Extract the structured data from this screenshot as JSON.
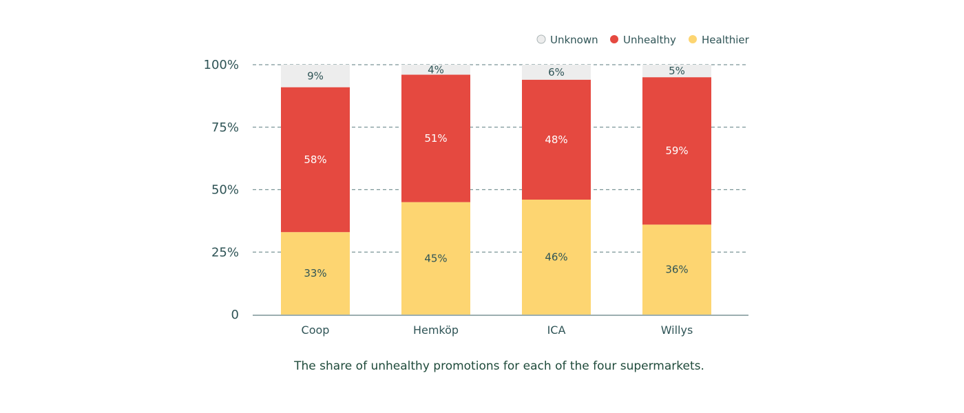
{
  "chart_data": {
    "type": "bar",
    "stacked": true,
    "title": "",
    "caption": "The share of unhealthy promotions for each of the four supermarkets.",
    "xlabel": "",
    "ylabel": "",
    "categories": [
      "Coop",
      "Hemköp",
      "ICA",
      "Willys"
    ],
    "series": [
      {
        "name": "Healthier",
        "color": "#fdd571",
        "label_color": "#2f5456",
        "values": [
          33,
          45,
          46,
          36
        ],
        "labels": [
          "33%",
          "45%",
          "46%",
          "36%"
        ]
      },
      {
        "name": "Unhealthy",
        "color": "#e54940",
        "label_color": "#ffffff",
        "values": [
          58,
          51,
          48,
          59
        ],
        "labels": [
          "58%",
          "51%",
          "48%",
          "59%"
        ]
      },
      {
        "name": "Unknown",
        "color": "#ededed",
        "label_color": "#2f5456",
        "values": [
          9,
          4,
          6,
          5
        ],
        "labels": [
          "9%",
          "4%",
          "6%",
          "5%"
        ]
      }
    ],
    "ylim": [
      0,
      100
    ],
    "yticks": [
      0,
      25,
      50,
      75,
      100
    ],
    "ytick_labels": [
      "0",
      "25%",
      "50%",
      "75%",
      "100%"
    ],
    "grid": true,
    "grid_style": "dashed",
    "legend": {
      "placement": "top-right",
      "order": [
        "Unknown",
        "Unhealthy",
        "Healthier"
      ]
    },
    "colors": {
      "axis": "#7a9496",
      "grid": "#7a9496",
      "text": "#2f5456",
      "caption": "#1e4a3a"
    }
  }
}
